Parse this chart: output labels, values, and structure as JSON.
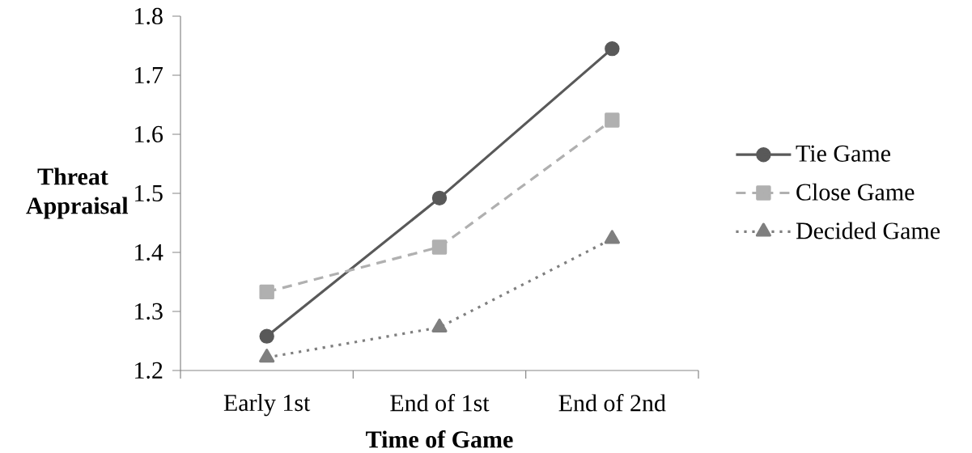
{
  "chart_data": {
    "type": "line",
    "xlabel": "Time of Game",
    "ylabel": "Threat Appraisal",
    "categories": [
      "Early 1st",
      "End of 1st",
      "End of 2nd"
    ],
    "series": [
      {
        "name": "Tie Game",
        "color": "#595959",
        "values": [
          1.258,
          1.492,
          1.745
        ],
        "marker": "circle",
        "line_style": "solid"
      },
      {
        "name": "Close Game",
        "color": "#b0b0b0",
        "values": [
          1.333,
          1.409,
          1.624
        ],
        "marker": "square",
        "line_style": "dashed"
      },
      {
        "name": "Decided Game",
        "color": "#7f7f7f",
        "values": [
          1.222,
          1.273,
          1.423
        ],
        "marker": "triangle",
        "line_style": "dotted"
      }
    ],
    "ylim": [
      1.2,
      1.8
    ],
    "yticks": [
      1.2,
      1.3,
      1.4,
      1.5,
      1.6,
      1.7,
      1.8
    ],
    "grid": false,
    "legend": "right"
  }
}
